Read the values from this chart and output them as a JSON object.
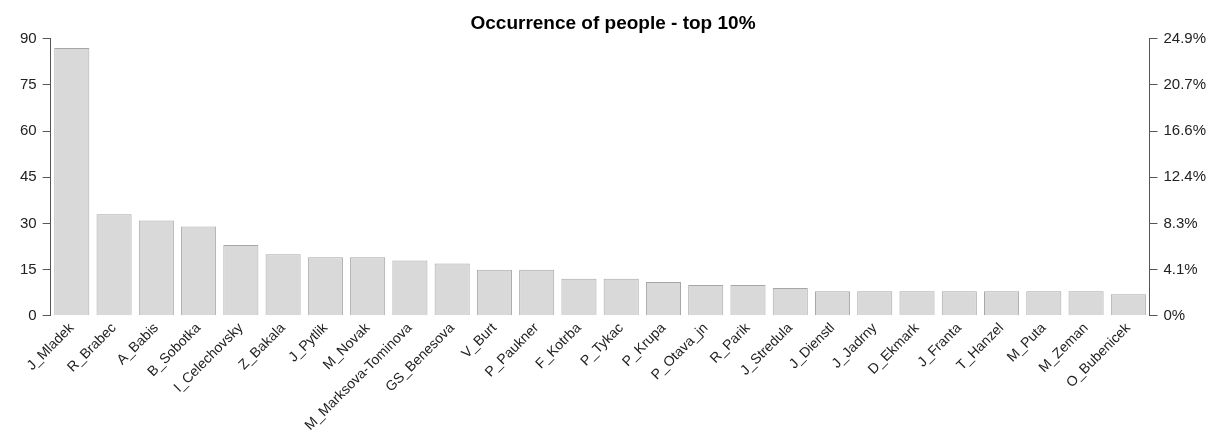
{
  "chart_data": {
    "type": "bar",
    "title": "Occurrence of people - top 10%",
    "categories": [
      "J_Mladek",
      "R_Brabec",
      "A_Babis",
      "B_Sobotka",
      "I_Celechovsky",
      "Z_Bakala",
      "J_Pytlik",
      "M_Novak",
      "M_Marksova-Tominova",
      "GS_Benesova",
      "V_Burt",
      "P_Paukner",
      "F_Kotrba",
      "P_Tykac",
      "P_Krupa",
      "P_Otava_jn",
      "R_Parik",
      "J_Stredula",
      "J_Dienstl",
      "J_Jadrny",
      "D_Ekmark",
      "J_Franta",
      "T_Hanzel",
      "M_Puta",
      "M_Zeman",
      "O_Bubenicek"
    ],
    "values": [
      87,
      33,
      31,
      29,
      23,
      20,
      19,
      19,
      18,
      17,
      15,
      15,
      12,
      12,
      11,
      10,
      10,
      9,
      8,
      8,
      8,
      8,
      8,
      8,
      8,
      7
    ],
    "color": "#d9d9d9",
    "ylim": [
      0,
      90
    ],
    "yticks": [
      0,
      15,
      30,
      45,
      60,
      75,
      90
    ],
    "y2lim": [
      0,
      24.9
    ],
    "y2ticks": [
      {
        "value": 0,
        "label": "0%"
      },
      {
        "value": 4.15,
        "label": "4.1%"
      },
      {
        "value": 8.3,
        "label": "8.3%"
      },
      {
        "value": 12.45,
        "label": "12.4%"
      },
      {
        "value": 16.6,
        "label": "16.6%"
      },
      {
        "value": 20.75,
        "label": "20.7%"
      },
      {
        "value": 24.9,
        "label": "24.9%"
      }
    ],
    "grid": false,
    "legend": false
  }
}
